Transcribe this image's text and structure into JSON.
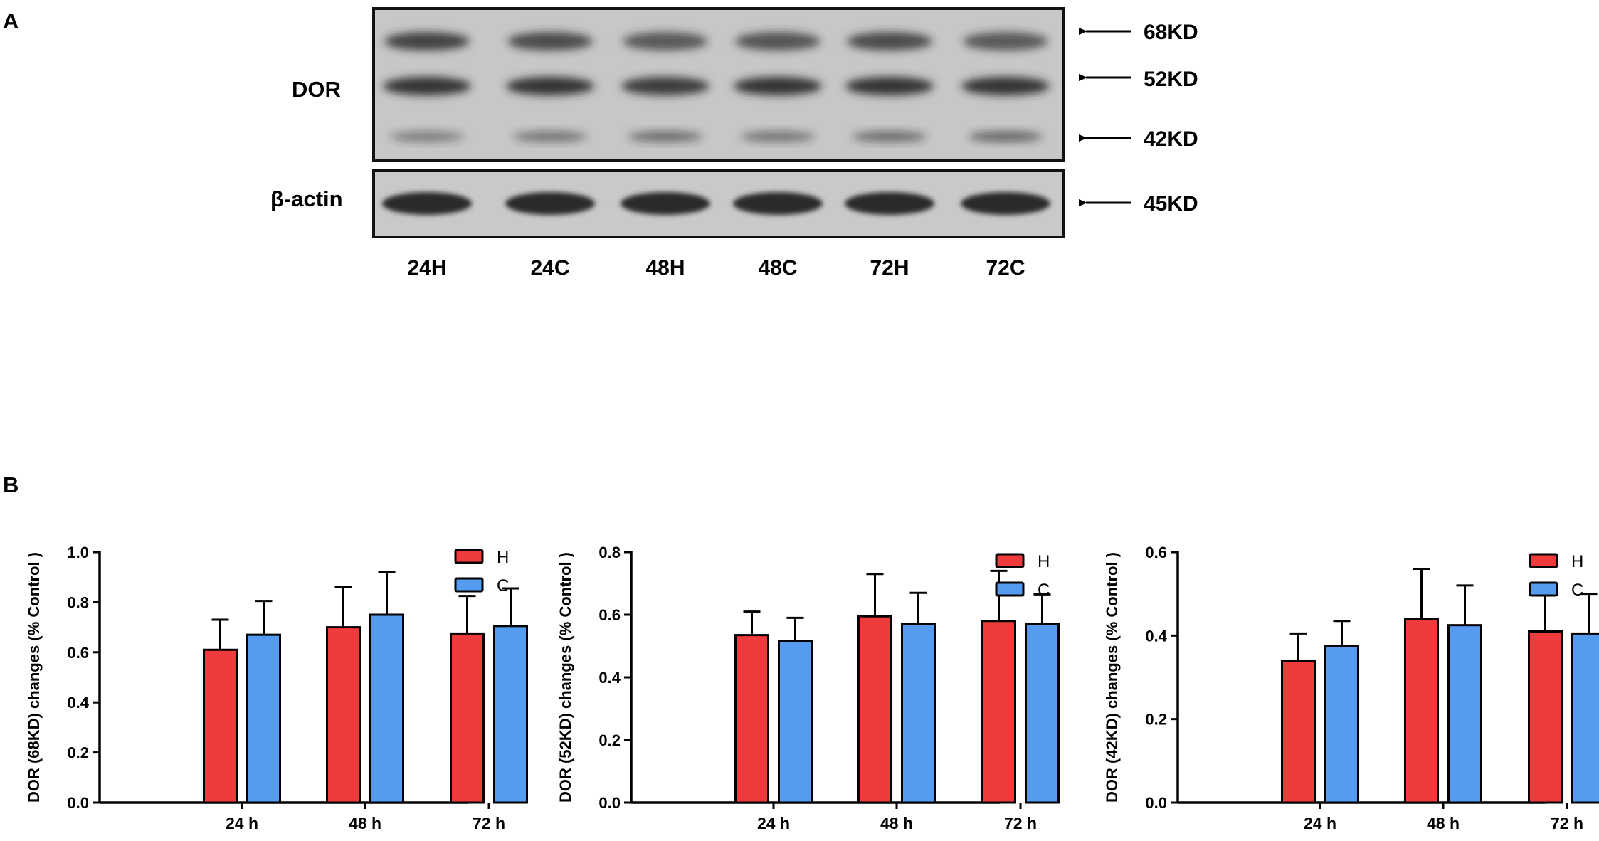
{
  "panel_a": {
    "label": "A",
    "row_labels": {
      "dor": "DOR",
      "actin": "β-actin"
    },
    "markers": [
      "68KD",
      "52KD",
      "42KD",
      "45KD"
    ],
    "lanes": [
      "24H",
      "24C",
      "48H",
      "48C",
      "72H",
      "72C"
    ]
  },
  "panel_b": {
    "label": "B"
  },
  "colors": {
    "H": "#ef3b3b",
    "C": "#559bef",
    "blot_bg": "#c9c9c9",
    "band": "#2b2b2b"
  },
  "chart_data": [
    {
      "type": "bar",
      "categories": [
        "24 h",
        "48 h",
        "72 h"
      ],
      "ylabel": "DOR (68KD) changes (% Control )",
      "ylim": [
        0,
        1.0
      ],
      "yticks": [
        "0.0",
        "0.2",
        "0.4",
        "0.6",
        "0.8",
        "1.0"
      ],
      "legend_position": "top-right",
      "series": [
        {
          "name": "H",
          "values": [
            0.61,
            0.7,
            0.675
          ],
          "errors": [
            0.12,
            0.16,
            0.15
          ]
        },
        {
          "name": "C",
          "values": [
            0.67,
            0.75,
            0.705
          ],
          "errors": [
            0.135,
            0.17,
            0.15
          ]
        }
      ]
    },
    {
      "type": "bar",
      "categories": [
        "24 h",
        "48 h",
        "72 h"
      ],
      "ylabel": "DOR (52KD) changes (% Control )",
      "ylim": [
        0,
        0.8
      ],
      "yticks": [
        "0.0",
        "0.2",
        "0.4",
        "0.6",
        "0.8"
      ],
      "legend_position": "top-right",
      "series": [
        {
          "name": "H",
          "values": [
            0.535,
            0.595,
            0.58
          ],
          "errors": [
            0.075,
            0.135,
            0.16
          ]
        },
        {
          "name": "C",
          "values": [
            0.515,
            0.57,
            0.57
          ],
          "errors": [
            0.075,
            0.1,
            0.095
          ]
        }
      ]
    },
    {
      "type": "bar",
      "categories": [
        "24 h",
        "48 h",
        "72 h"
      ],
      "ylabel": "DOR (42KD) changes (% Control )",
      "ylim": [
        0,
        0.6
      ],
      "yticks": [
        "0.0",
        "0.2",
        "0.4",
        "0.6"
      ],
      "legend_position": "top-right",
      "series": [
        {
          "name": "H",
          "values": [
            0.34,
            0.44,
            0.41
          ],
          "errors": [
            0.065,
            0.12,
            0.095
          ]
        },
        {
          "name": "C",
          "values": [
            0.375,
            0.425,
            0.405
          ],
          "errors": [
            0.06,
            0.095,
            0.095
          ]
        }
      ]
    }
  ]
}
